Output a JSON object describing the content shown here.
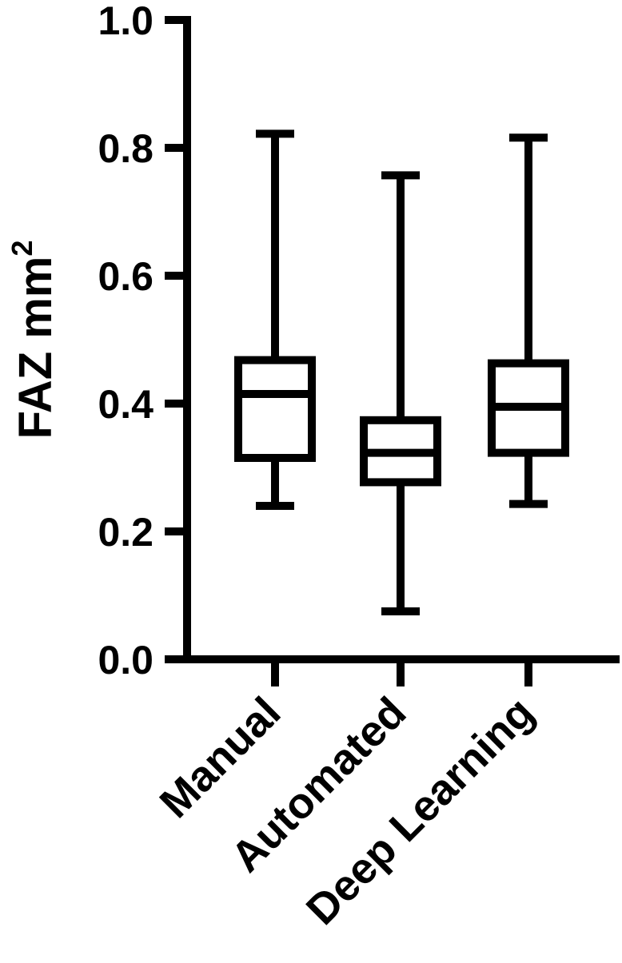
{
  "chart_data": {
    "type": "box",
    "title": "",
    "xlabel": "",
    "ylabel": "FAZ mm",
    "ylabel_superscript": "2",
    "ylim": [
      0.0,
      1.0
    ],
    "yticks": [
      {
        "value": 0.0,
        "label": "0.0"
      },
      {
        "value": 0.2,
        "label": "0.2"
      },
      {
        "value": 0.4,
        "label": "0.4"
      },
      {
        "value": 0.6,
        "label": "0.6"
      },
      {
        "value": 0.8,
        "label": "0.8"
      },
      {
        "value": 1.0,
        "label": "1.0"
      }
    ],
    "categories": [
      "Manual",
      "Automated",
      "Deep Learning"
    ],
    "series": [
      {
        "name": "Manual",
        "min": 0.24,
        "q1": 0.315,
        "median": 0.415,
        "q3": 0.468,
        "max": 0.822
      },
      {
        "name": "Automated",
        "min": 0.075,
        "q1": 0.277,
        "median": 0.323,
        "q3": 0.374,
        "max": 0.757
      },
      {
        "name": "Deep Learning",
        "min": 0.243,
        "q1": 0.323,
        "median": 0.395,
        "q3": 0.463,
        "max": 0.816
      }
    ],
    "colors": {
      "stroke": "#000000",
      "background": "#ffffff"
    }
  }
}
